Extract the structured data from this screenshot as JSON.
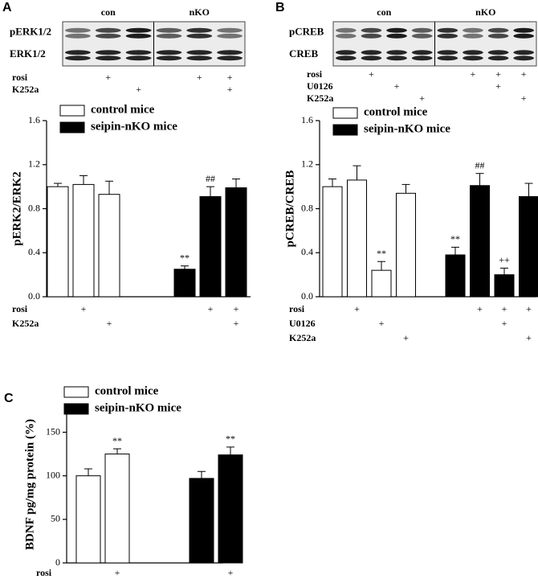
{
  "chart_data": [
    {
      "type": "bar",
      "panel_label": "A",
      "y_label": "pERK2/ERK2",
      "categories": [
        null,
        null,
        null,
        null,
        null,
        null
      ],
      "series": [
        {
          "name": "control mice",
          "color": "#ffffff",
          "values": [
            1.0,
            1.02,
            0.93,
            null,
            null,
            null
          ],
          "errors": [
            0.03,
            0.08,
            0.12,
            null,
            null,
            null
          ],
          "annotations": [
            null,
            null,
            null,
            null,
            null,
            null
          ]
        },
        {
          "name": "seipin-nKO mice",
          "color": "#000000",
          "values": [
            null,
            null,
            null,
            0.25,
            0.91,
            0.99
          ],
          "errors": [
            null,
            null,
            null,
            0.03,
            0.09,
            0.08
          ],
          "annotations": [
            null,
            null,
            null,
            "**",
            "##",
            null
          ]
        }
      ],
      "ylim": [
        0,
        1.6
      ],
      "yticks": [
        {
          "value": 0,
          "label": "0.0"
        },
        0.4,
        0.8,
        1.2,
        1.6
      ],
      "conditions": [
        {
          "name": "rosi",
          "marks": [
            null,
            "+",
            null,
            null,
            "+",
            "+"
          ]
        },
        {
          "name": "K252a",
          "marks": [
            null,
            null,
            "+",
            null,
            null,
            "+"
          ]
        }
      ],
      "blot": {
        "groups": [
          "con",
          "nKO"
        ],
        "rows": [
          "pERK1/2",
          "ERK1/2"
        ],
        "conditions": [
          {
            "name": "rosi",
            "marks": [
              null,
              "+",
              null,
              null,
              "+",
              "+"
            ]
          },
          {
            "name": "K252a",
            "marks": [
              null,
              null,
              "+",
              null,
              null,
              "+"
            ]
          }
        ]
      }
    },
    {
      "type": "bar",
      "panel_label": "B",
      "y_label": "pCREB/CREB",
      "categories": [
        null,
        null,
        null,
        null,
        null,
        null,
        null,
        null
      ],
      "series": [
        {
          "name": "control mice",
          "color": "#ffffff",
          "values": [
            1.0,
            1.06,
            0.24,
            0.94,
            null,
            null,
            null,
            null
          ],
          "errors": [
            0.07,
            0.13,
            0.08,
            0.08,
            null,
            null,
            null,
            null
          ],
          "annotations": [
            null,
            null,
            "**",
            null,
            null,
            null,
            null,
            null
          ]
        },
        {
          "name": "seipin-nKO mice",
          "color": "#000000",
          "values": [
            null,
            null,
            null,
            null,
            0.38,
            1.01,
            0.2,
            0.91
          ],
          "errors": [
            null,
            null,
            null,
            null,
            0.07,
            0.11,
            0.06,
            0.12
          ],
          "annotations": [
            null,
            null,
            null,
            null,
            "**",
            "##",
            "++",
            null
          ]
        }
      ],
      "ylim": [
        0,
        1.6
      ],
      "yticks": [
        {
          "value": 0,
          "label": "0.0"
        },
        0.4,
        0.8,
        1.2,
        1.6
      ],
      "conditions": [
        {
          "name": "rosi",
          "marks": [
            null,
            "+",
            null,
            null,
            null,
            "+",
            "+",
            "+"
          ]
        },
        {
          "name": "U0126",
          "marks": [
            null,
            null,
            "+",
            null,
            null,
            null,
            "+",
            null
          ]
        },
        {
          "name": "K252a",
          "marks": [
            null,
            null,
            null,
            "+",
            null,
            null,
            null,
            "+"
          ]
        }
      ],
      "blot": {
        "groups": [
          "con",
          "nKO"
        ],
        "rows": [
          "pCREB",
          "CREB"
        ],
        "conditions": [
          {
            "name": "rosi",
            "marks": [
              null,
              "+",
              null,
              null,
              null,
              "+",
              "+",
              "+"
            ]
          },
          {
            "name": "U0126",
            "marks": [
              null,
              null,
              "+",
              null,
              null,
              null,
              "+",
              null
            ]
          },
          {
            "name": "K252a",
            "marks": [
              null,
              null,
              null,
              "+",
              null,
              null,
              null,
              "+"
            ]
          }
        ]
      }
    },
    {
      "type": "bar",
      "panel_label": "C",
      "y_label": "BDNF pg/mg protein (%)",
      "categories": [
        null,
        null,
        null,
        null
      ],
      "series": [
        {
          "name": "control mice",
          "color": "#ffffff",
          "values": [
            100,
            125,
            null,
            null
          ],
          "errors": [
            8,
            6,
            null,
            null
          ],
          "annotations": [
            null,
            "**",
            null,
            null
          ]
        },
        {
          "name": "seipin-nKO mice",
          "color": "#000000",
          "values": [
            null,
            null,
            97,
            124
          ],
          "errors": [
            null,
            null,
            8,
            9
          ],
          "annotations": [
            null,
            null,
            null,
            "**"
          ]
        }
      ],
      "ylim": [
        0,
        180
      ],
      "yticks": [
        0,
        50,
        100,
        150
      ],
      "conditions": [
        {
          "name": "rosi",
          "marks": [
            null,
            "+",
            null,
            "+"
          ]
        }
      ]
    }
  ]
}
